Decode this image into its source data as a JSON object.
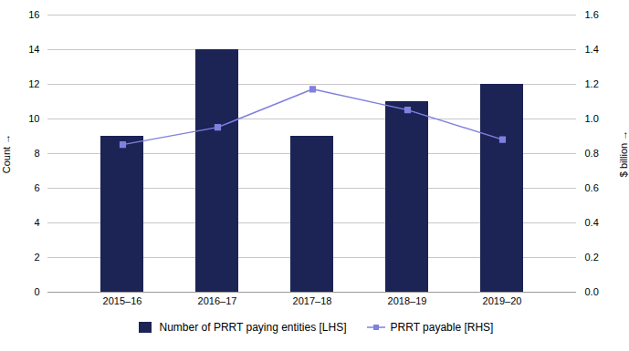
{
  "chart_data": {
    "type": "bar",
    "categories": [
      "2015–16",
      "2016–17",
      "2017–18",
      "2018–19",
      "2019–20"
    ],
    "series": [
      {
        "name": "Number of PRRT paying entities [LHS]",
        "type": "bar",
        "color": "#1c2355",
        "values": [
          9,
          14,
          9,
          11,
          12
        ]
      },
      {
        "name": "PRRT payable [RHS]",
        "type": "line",
        "color": "#8080e0",
        "marker": "square",
        "axis": "y2",
        "values": [
          0.852,
          0.952,
          1.172,
          1.052,
          0.881
        ]
      }
    ],
    "ylabel": "Count",
    "y2label": "$ billion",
    "ylim": [
      0,
      16
    ],
    "yticks": [
      0,
      2,
      4,
      6,
      8,
      10,
      12,
      14,
      16
    ],
    "y2lim": [
      0,
      1.6
    ],
    "y2ticks": [
      {
        "value": 0,
        "label": "0.0"
      },
      0.2,
      0.4,
      0.6,
      0.8,
      {
        "value": 1,
        "label": "1.0"
      },
      1.2,
      1.4,
      1.6
    ],
    "grid": true,
    "legend": "bottom"
  }
}
